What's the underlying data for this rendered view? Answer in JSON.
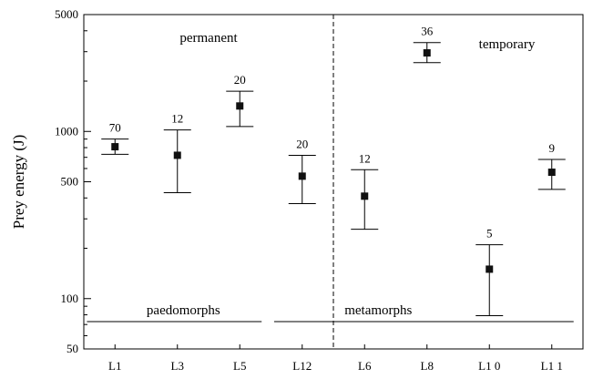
{
  "chart_data": {
    "type": "scatter",
    "ylabel": "Prey energy (J)",
    "yscale": "log",
    "ylim": [
      50,
      5000
    ],
    "yticks": [
      50,
      100,
      500,
      1000,
      5000
    ],
    "categories": [
      "L1",
      "L3",
      "L5",
      "L12",
      "L6",
      "L8",
      "L1 0",
      "L1 1"
    ],
    "points": [
      {
        "category": "L1",
        "value": 810,
        "low": 730,
        "high": 900,
        "n": "70"
      },
      {
        "category": "L3",
        "value": 720,
        "low": 430,
        "high": 1020,
        "n": "12"
      },
      {
        "category": "L5",
        "value": 1420,
        "low": 1070,
        "high": 1740,
        "n": "20"
      },
      {
        "category": "L12",
        "value": 540,
        "low": 370,
        "high": 720,
        "n": "20"
      },
      {
        "category": "L6",
        "value": 410,
        "low": 260,
        "high": 590,
        "n": "12"
      },
      {
        "category": "L8",
        "value": 2950,
        "low": 2580,
        "high": 3400,
        "n": "36"
      },
      {
        "category": "L1 0",
        "value": 150,
        "low": 79,
        "high": 210,
        "n": "5"
      },
      {
        "category": "L1 1",
        "value": 570,
        "low": 450,
        "high": 680,
        "n": "9"
      }
    ],
    "divider_after_category": "L12",
    "region_labels": [
      {
        "text": "permanent",
        "side": "left"
      },
      {
        "text": "temporary",
        "side": "right"
      }
    ],
    "group_spans": [
      {
        "text": "paedomorphs",
        "from": "L1",
        "to": "L5"
      },
      {
        "text": "metamorphs",
        "from": "L12",
        "to": "L1 1"
      }
    ]
  }
}
